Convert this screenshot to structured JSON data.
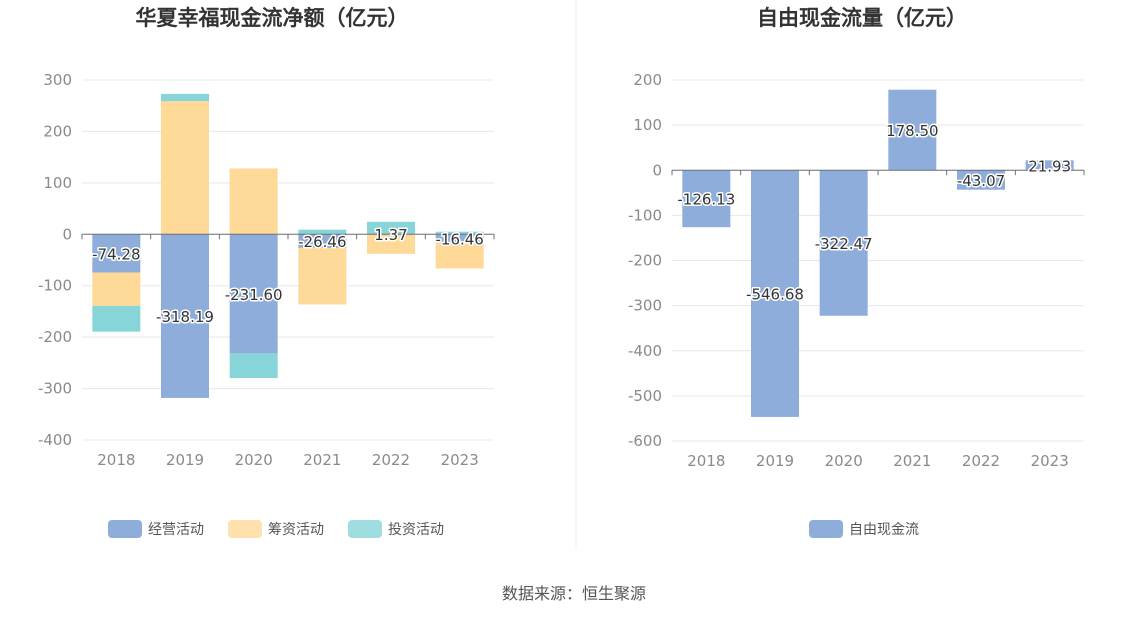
{
  "source": "数据来源：恒生聚源",
  "chart_data": [
    {
      "type": "bar",
      "stacked": true,
      "title": "华夏幸福现金流净额（亿元）",
      "categories": [
        "2018",
        "2019",
        "2020",
        "2021",
        "2022",
        "2023"
      ],
      "ylim": [
        -400,
        300
      ],
      "yticks": [
        300,
        200,
        100,
        0,
        -100,
        -200,
        -300,
        -400
      ],
      "grid": true,
      "legend_position": "bottom",
      "series": [
        {
          "name": "经营活动",
          "color": "#8eaddb",
          "values": [
            -74.28,
            -318.19,
            -231.6,
            -26.46,
            1.37,
            -16.46
          ],
          "labels": [
            "-74.28",
            "-318.19",
            "-231.60",
            "-26.46",
            "1.37",
            "-16.46"
          ]
        },
        {
          "name": "筹资活动",
          "color": "#fed998",
          "values": [
            -65,
            259,
            128,
            -110,
            -38,
            -50
          ]
        },
        {
          "name": "投资活动",
          "color": "#88d5d9",
          "values": [
            -50,
            14,
            -48,
            9,
            23,
            5
          ]
        }
      ]
    },
    {
      "type": "bar",
      "title": "自由现金流量（亿元）",
      "categories": [
        "2018",
        "2019",
        "2020",
        "2021",
        "2022",
        "2023"
      ],
      "ylim": [
        -600,
        200
      ],
      "yticks": [
        200,
        100,
        0,
        -100,
        -200,
        -300,
        -400,
        -500,
        -600
      ],
      "grid": true,
      "legend_position": "bottom",
      "series": [
        {
          "name": "自由现金流",
          "color": "#8eaddb",
          "values": [
            -126.13,
            -546.68,
            -322.47,
            178.5,
            -43.07,
            21.93
          ],
          "labels": [
            "-126.13",
            "-546.68",
            "-322.47",
            "178.50",
            "-43.07",
            "21.93"
          ]
        }
      ]
    }
  ]
}
